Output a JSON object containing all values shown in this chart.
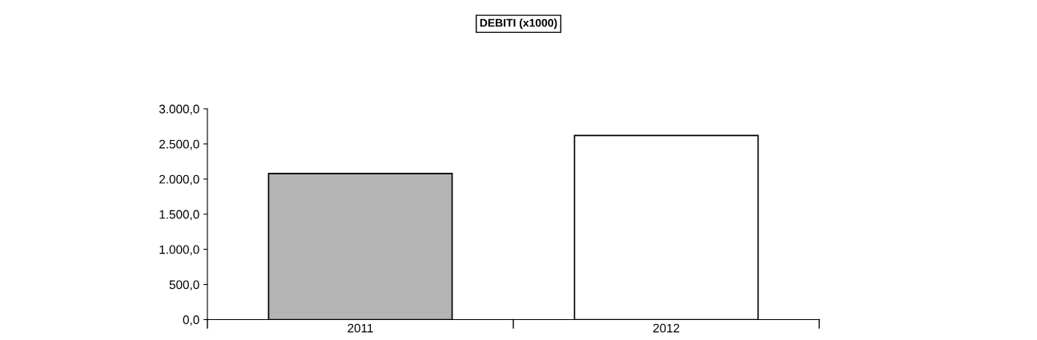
{
  "chart_data": {
    "type": "bar",
    "title": "DEBITI (x1000)",
    "categories": [
      "2011",
      "2012"
    ],
    "values": [
      2080,
      2620
    ],
    "colors": [
      "#b4b4b4",
      "#ffffff"
    ],
    "ylim": [
      0,
      3000
    ],
    "yticks": [
      {
        "value": 0,
        "label": "0,0"
      },
      {
        "value": 500,
        "label": "500,0"
      },
      {
        "value": 1000,
        "label": "1.000,0"
      },
      {
        "value": 1500,
        "label": "1.500,0"
      },
      {
        "value": 2000,
        "label": "2.000,0"
      },
      {
        "value": 2500,
        "label": "2.500,0"
      },
      {
        "value": 3000,
        "label": "3.000,0"
      }
    ],
    "grid": false
  }
}
